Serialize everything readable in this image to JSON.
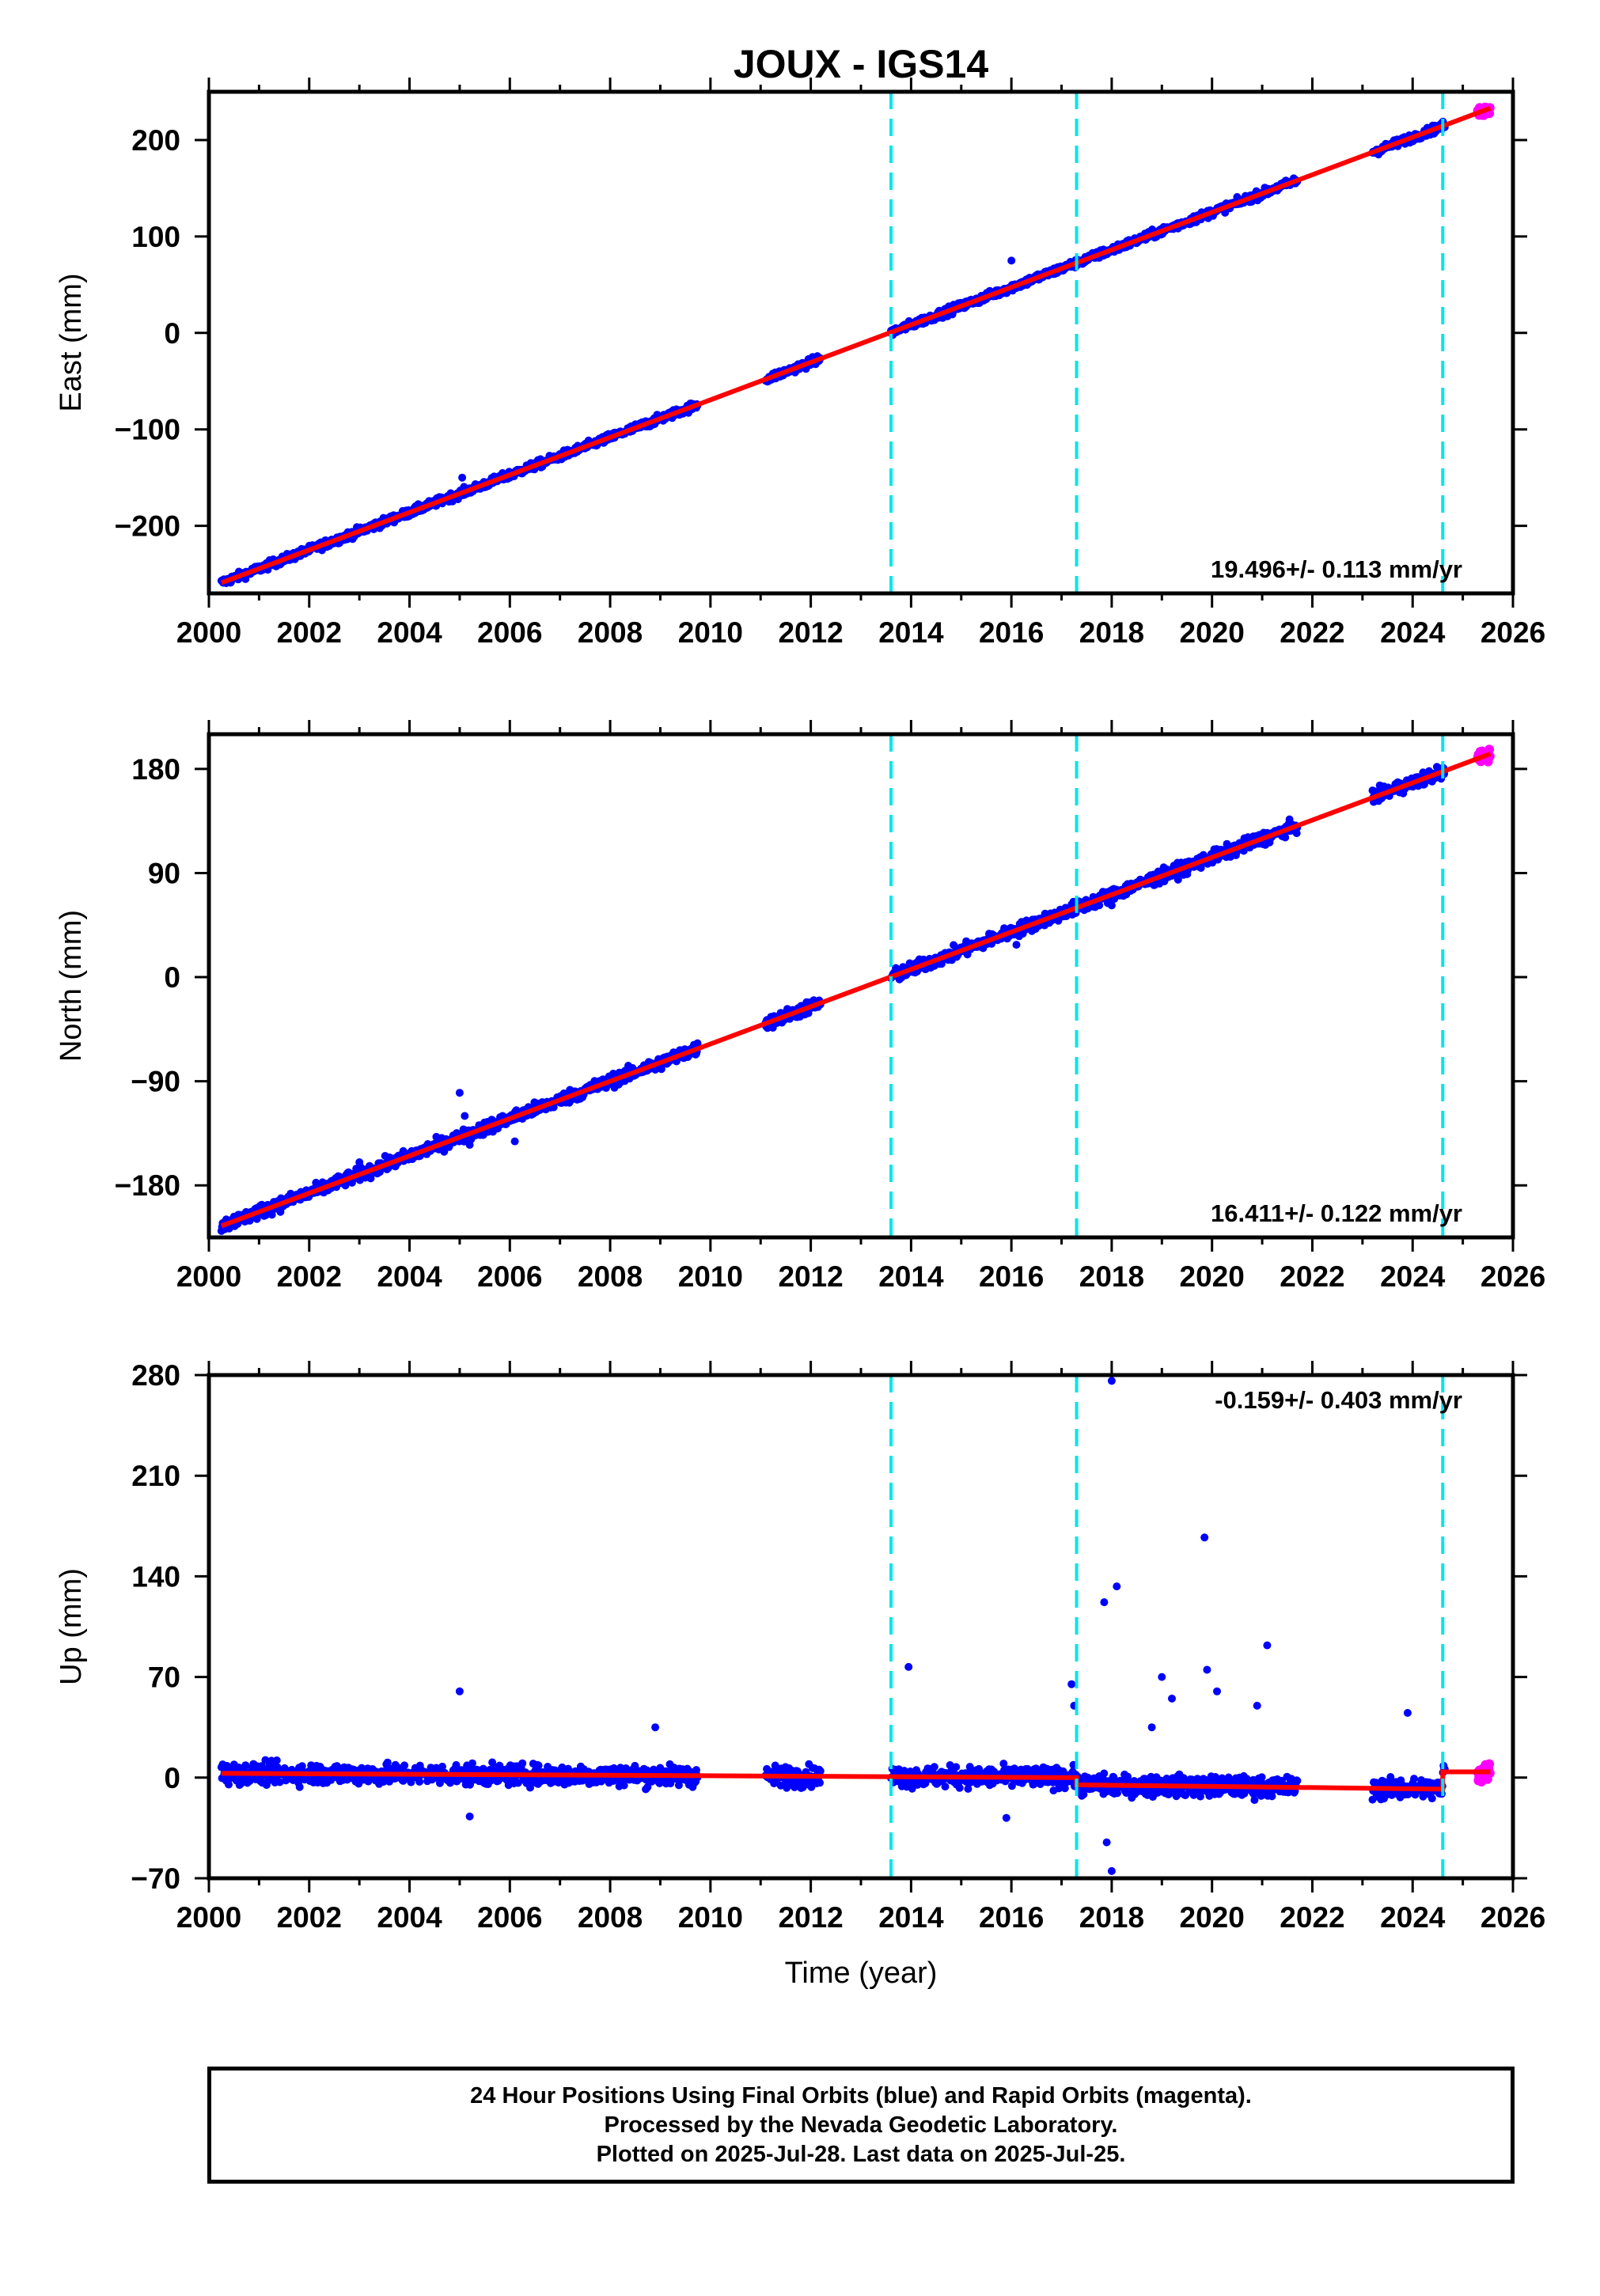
{
  "title": "JOUX - IGS14",
  "xlabel": "Time (year)",
  "footer": {
    "line1": "24 Hour Positions Using Final Orbits (blue) and Rapid Orbits (magenta).",
    "line2": "Processed by the Nevada Geodetic Laboratory.",
    "line3": "Plotted on 2025-Jul-28. Last data on 2025-Jul-25."
  },
  "colors": {
    "final": "#0000ff",
    "rapid": "#ff00ff",
    "model": "#ff0000",
    "steps": "#00e5ee"
  },
  "chart_data": [
    {
      "type": "scatter",
      "name": "east",
      "ylabel": "East (mm)",
      "xlim": [
        2000.0,
        2026.0
      ],
      "ylim": [
        -270,
        250
      ],
      "xticks": [
        2000,
        2002,
        2004,
        2006,
        2008,
        2010,
        2012,
        2014,
        2016,
        2018,
        2020,
        2022,
        2024,
        2026
      ],
      "yticks": [
        -200,
        -100,
        0,
        100,
        200
      ],
      "ytick_labels": [
        "−200",
        "−100",
        "0",
        "100",
        "200"
      ],
      "rate_label": "19.496+/- 0.113 mm/yr",
      "steps": [
        2013.6,
        2017.3,
        2024.6
      ],
      "model": {
        "x": [
          2000.25,
          2025.55
        ],
        "y": [
          -259,
          233
        ]
      },
      "final_segments": [
        [
          2000.25,
          2009.75
        ],
        [
          2011.1,
          2012.2
        ],
        [
          2013.6,
          2021.7
        ],
        [
          2023.2,
          2024.65
        ]
      ],
      "final_scatter": 3,
      "rapid_segment": [
        2025.3,
        2025.55
      ],
      "outliers": [
        {
          "x": 2016.0,
          "y": 75
        },
        {
          "x": 2005.05,
          "y": -150
        }
      ]
    },
    {
      "type": "scatter",
      "name": "north",
      "ylabel": "North (mm)",
      "xlim": [
        2000.0,
        2026.0
      ],
      "ylim": [
        -225,
        210
      ],
      "xticks": [
        2000,
        2002,
        2004,
        2006,
        2008,
        2010,
        2012,
        2014,
        2016,
        2018,
        2020,
        2022,
        2024,
        2026
      ],
      "yticks": [
        -180,
        -90,
        0,
        90,
        180
      ],
      "ytick_labels": [
        "−180",
        "−90",
        "0",
        "90",
        "180"
      ],
      "rate_label": "16.411+/- 0.122 mm/yr",
      "steps": [
        2013.6,
        2017.3,
        2024.6
      ],
      "model": {
        "x": [
          2000.25,
          2025.55
        ],
        "y": [
          -215,
          193
        ]
      },
      "final_segments": [
        [
          2000.25,
          2009.75
        ],
        [
          2011.1,
          2012.2
        ],
        [
          2013.6,
          2021.7
        ],
        [
          2023.2,
          2024.65
        ]
      ],
      "final_scatter": 4,
      "rapid_segment": [
        2025.3,
        2025.55
      ],
      "outliers": [
        {
          "x": 2005.0,
          "y": -100
        },
        {
          "x": 2005.1,
          "y": -120
        },
        {
          "x": 2005.2,
          "y": -145
        },
        {
          "x": 2006.1,
          "y": -142
        },
        {
          "x": 2003.0,
          "y": -160
        },
        {
          "x": 2008.9,
          "y": -80
        },
        {
          "x": 2016.1,
          "y": 28
        },
        {
          "x": 2018.0,
          "y": 62
        }
      ]
    },
    {
      "type": "scatter",
      "name": "up",
      "ylabel": "Up (mm)",
      "xlim": [
        2000.0,
        2026.0
      ],
      "ylim": [
        -70,
        280
      ],
      "xticks": [
        2000,
        2002,
        2004,
        2006,
        2008,
        2010,
        2012,
        2014,
        2016,
        2018,
        2020,
        2022,
        2024,
        2026
      ],
      "yticks": [
        -70,
        0,
        70,
        140,
        210,
        280
      ],
      "ytick_labels": [
        "−70",
        "0",
        "70",
        "140",
        "210",
        "280"
      ],
      "rate_label": "-0.159+/- 0.403 mm/yr",
      "steps": [
        2013.6,
        2017.3,
        2024.6
      ],
      "model_segments": [
        {
          "x": [
            2000.25,
            2017.3
          ],
          "y": [
            3,
            0
          ]
        },
        {
          "x": [
            2017.3,
            2024.6
          ],
          "y": [
            -5,
            -8
          ]
        },
        {
          "x": [
            2024.6,
            2025.55
          ],
          "y": [
            4,
            4
          ]
        }
      ],
      "final_segments": [
        [
          2000.25,
          2009.75
        ],
        [
          2011.1,
          2012.2
        ],
        [
          2013.6,
          2021.7
        ],
        [
          2023.2,
          2024.65
        ]
      ],
      "final_scatter": 5,
      "rapid_segment": [
        2025.3,
        2025.55
      ],
      "outliers": [
        {
          "x": 2005.0,
          "y": 60
        },
        {
          "x": 2008.9,
          "y": 35
        },
        {
          "x": 2013.95,
          "y": 77
        },
        {
          "x": 2017.2,
          "y": 65
        },
        {
          "x": 2017.25,
          "y": 50
        },
        {
          "x": 2018.0,
          "y": 276
        },
        {
          "x": 2017.85,
          "y": 122
        },
        {
          "x": 2018.1,
          "y": 133
        },
        {
          "x": 2019.85,
          "y": 167
        },
        {
          "x": 2019.0,
          "y": 70
        },
        {
          "x": 2019.9,
          "y": 75
        },
        {
          "x": 2020.1,
          "y": 60
        },
        {
          "x": 2021.1,
          "y": 92
        },
        {
          "x": 2018.0,
          "y": -65
        },
        {
          "x": 2017.9,
          "y": -45
        },
        {
          "x": 2015.9,
          "y": -28
        },
        {
          "x": 2005.2,
          "y": -27
        },
        {
          "x": 2019.2,
          "y": 55
        },
        {
          "x": 2020.9,
          "y": 50
        },
        {
          "x": 2023.9,
          "y": 45
        },
        {
          "x": 2018.8,
          "y": 35
        }
      ]
    }
  ]
}
